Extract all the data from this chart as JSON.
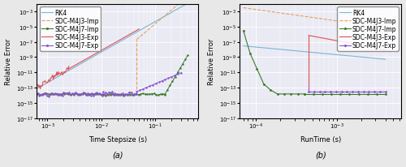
{
  "fig_width": 5.0,
  "fig_height": 2.07,
  "dpi": 100,
  "background_color": "#e8e8e8",
  "panel_a": {
    "xlabel": "Time Stepsize (s)",
    "ylabel": "Relative Error",
    "caption": "(a)",
    "xlim_log": [
      -3.2,
      -0.2
    ],
    "ylim_log": [
      -17,
      -2
    ],
    "facecolor": "#eaeaf4"
  },
  "panel_b": {
    "xlabel": "RunTime (s)",
    "ylabel": "Relative Error",
    "caption": "(b)",
    "xlim_log": [
      -4.2,
      -2.2
    ],
    "ylim_log": [
      -17,
      -2
    ],
    "facecolor": "#eaeaf4"
  },
  "legend": {
    "labels": [
      "RK4",
      "SDC-M4J3-Imp",
      "SDC-M4J7-Imp",
      "SDC-M4J3-Exp",
      "SDC-M4J7-Exp"
    ],
    "colors": [
      "#7cb4d4",
      "#e8a055",
      "#3a7a2a",
      "#e05050",
      "#8855cc"
    ],
    "linestyles": [
      "-",
      "--",
      "-",
      "-",
      "-"
    ],
    "markers": [
      null,
      null,
      ".",
      null,
      "."
    ],
    "fontsize": 5.5
  }
}
